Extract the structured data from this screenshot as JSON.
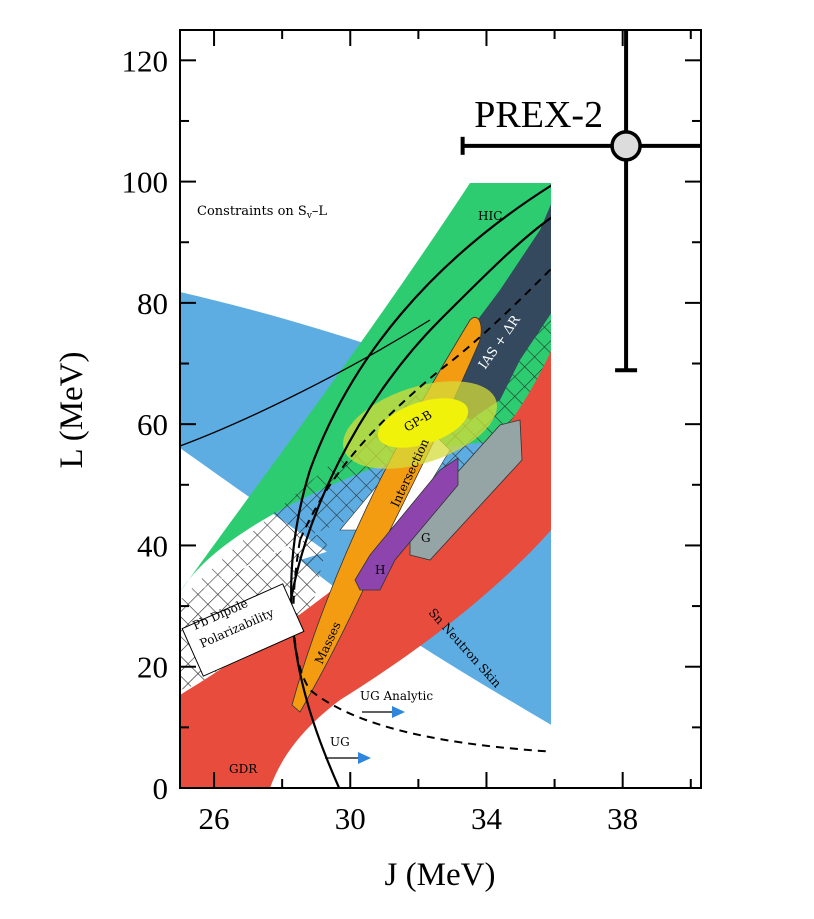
{
  "chart_data": {
    "type": "scatter",
    "xlabel": "J (MeV)",
    "ylabel": "L (MeV)",
    "xlim": [
      25,
      40.3
    ],
    "ylim": [
      0,
      125
    ],
    "x_ticks": [
      26,
      30,
      34,
      38
    ],
    "y_ticks": [
      0,
      20,
      40,
      60,
      80,
      100,
      120
    ],
    "grid": false,
    "series": [
      {
        "name": "PREX-2",
        "points": [
          {
            "x": 38.1,
            "y": 105.9,
            "x_err_minus": 4.8,
            "x_err_plus": 2.5,
            "y_err_minus": 37.0,
            "y_err_plus": 19.0
          }
        ]
      }
    ],
    "inset": {
      "title": "Constraints on S_v–L",
      "region_labels": [
        "HIC",
        "IAS + ΔR",
        "GP-B",
        "Intersection",
        "G",
        "H",
        "Masses",
        "Pb Dipole",
        "Polarizability",
        "Sn Neutron Skin",
        "UG Analytic",
        "UG",
        "GDR"
      ],
      "colors": {
        "HIC": "#2ecc71",
        "IAS": "#34495e",
        "GP_B": "#f1f20a",
        "masses": "#f39c12",
        "H": "#8e44ad",
        "G": "#95a5a6",
        "GDR": "#e74c3c",
        "skin": "#5dade2"
      }
    }
  }
}
